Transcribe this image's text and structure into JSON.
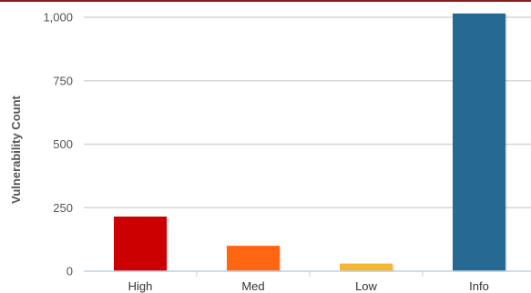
{
  "chart_data": {
    "type": "bar",
    "title": "",
    "xlabel": "",
    "ylabel": "Vulnerability Count",
    "categories": [
      "High",
      "Med",
      "Low",
      "Info"
    ],
    "values": [
      215,
      100,
      30,
      1015
    ],
    "colors": [
      "#cc0000",
      "#ff6611",
      "#f5b731",
      "#266a93"
    ],
    "ylim": [
      0,
      1000
    ],
    "yticks": [
      0,
      250,
      500,
      750,
      1000
    ],
    "ytick_labels": [
      "0",
      "250",
      "500",
      "750",
      "1,000"
    ],
    "grid": true,
    "legend": "none"
  },
  "theme": {
    "top_rule_color": "#8b1c1c",
    "grid_color": "#d7d7d7",
    "axis_color": "#c0d0e0"
  }
}
